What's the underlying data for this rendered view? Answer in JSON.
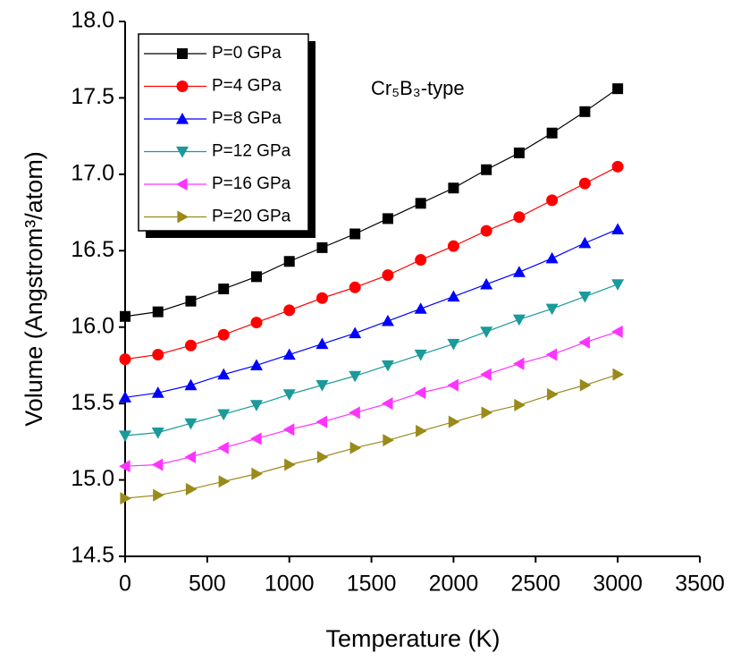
{
  "chart_data": {
    "type": "line",
    "x": [
      0,
      200,
      400,
      600,
      800,
      1000,
      1200,
      1400,
      1600,
      1800,
      2000,
      2200,
      2400,
      2600,
      2800,
      3000
    ],
    "series": [
      {
        "name": "P=0 GPa",
        "color": "#000000",
        "marker": "square",
        "values": [
          16.07,
          16.1,
          16.17,
          16.25,
          16.33,
          16.43,
          16.52,
          16.61,
          16.71,
          16.81,
          16.91,
          17.03,
          17.14,
          17.27,
          17.41,
          17.56
        ]
      },
      {
        "name": "P=4 GPa",
        "color": "#ff0000",
        "marker": "circle",
        "values": [
          15.79,
          15.82,
          15.88,
          15.95,
          16.03,
          16.11,
          16.19,
          16.26,
          16.34,
          16.44,
          16.53,
          16.63,
          16.72,
          16.83,
          16.94,
          17.05
        ]
      },
      {
        "name": "P=8 GPa",
        "color": "#0000ff",
        "marker": "triangle-up",
        "values": [
          15.54,
          15.57,
          15.62,
          15.69,
          15.75,
          15.82,
          15.89,
          15.96,
          16.04,
          16.12,
          16.2,
          16.28,
          16.36,
          16.45,
          16.55,
          16.64
        ]
      },
      {
        "name": "P=12 GPa",
        "color": "#1a9a9a",
        "marker": "triangle-down",
        "values": [
          15.29,
          15.31,
          15.37,
          15.43,
          15.49,
          15.56,
          15.62,
          15.68,
          15.75,
          15.82,
          15.89,
          15.97,
          16.05,
          16.12,
          16.2,
          16.28
        ]
      },
      {
        "name": "P=16 GPa",
        "color": "#ff33ff",
        "marker": "triangle-left",
        "values": [
          15.09,
          15.1,
          15.15,
          15.21,
          15.27,
          15.33,
          15.38,
          15.44,
          15.5,
          15.57,
          15.62,
          15.69,
          15.76,
          15.82,
          15.9,
          15.97
        ]
      },
      {
        "name": "P=20 GPa",
        "color": "#9a8a1a",
        "marker": "triangle-right",
        "values": [
          14.88,
          14.9,
          14.94,
          14.99,
          15.04,
          15.1,
          15.15,
          15.21,
          15.26,
          15.32,
          15.38,
          15.44,
          15.49,
          15.56,
          15.62,
          15.69
        ]
      }
    ],
    "xlabel": "Temperature (K)",
    "ylabel": "Volume (Angstrom³/atom)",
    "annotation": "Cr₅B₃-type",
    "xlim": [
      0,
      3500
    ],
    "xticks": [
      0,
      500,
      1000,
      1500,
      2000,
      2500,
      3000,
      3500
    ],
    "ylim": [
      14.5,
      18
    ],
    "yticks": [
      14.5,
      {
        "value": 15,
        "label": "15.0"
      },
      15.5,
      {
        "value": 16,
        "label": "16.0"
      },
      16.5,
      {
        "value": 17,
        "label": "17.0"
      },
      17.5,
      {
        "value": 18,
        "label": "18.0"
      }
    ],
    "grid": false,
    "legend": "upper left"
  }
}
